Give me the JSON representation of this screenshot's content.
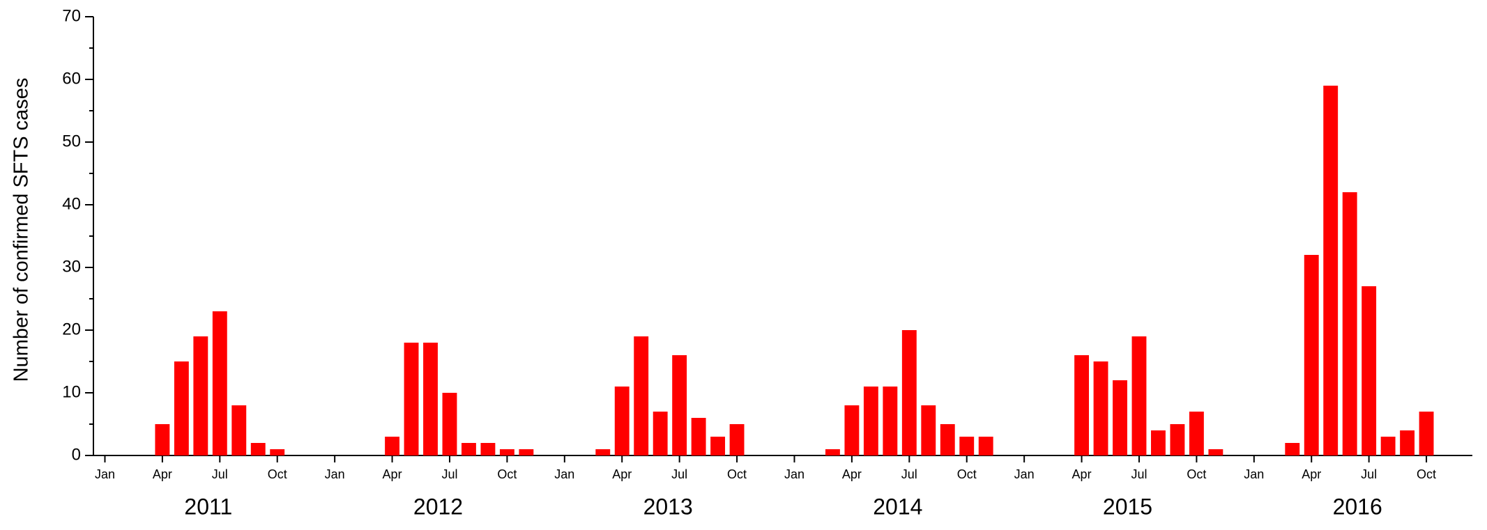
{
  "chart_data": {
    "type": "bar",
    "y_label": "Number of confirmed SFTS cases",
    "color": "#ff0000",
    "categories": [
      "Jan",
      null,
      null,
      "Apr",
      null,
      null,
      "Jul",
      null,
      null,
      "Oct",
      null,
      null,
      "Jan",
      null,
      null,
      "Apr",
      null,
      null,
      "Jul",
      null,
      null,
      "Oct",
      null,
      null,
      "Jan",
      null,
      null,
      "Apr",
      null,
      null,
      "Jul",
      null,
      null,
      "Oct",
      null,
      null,
      "Jan",
      null,
      null,
      "Apr",
      null,
      null,
      "Jul",
      null,
      null,
      "Oct",
      null,
      null,
      "Jan",
      null,
      null,
      "Apr",
      null,
      null,
      "Jul",
      null,
      null,
      "Oct",
      null,
      null,
      "Jan",
      null,
      null,
      "Apr",
      null,
      null,
      "Jul",
      null,
      null,
      "Oct",
      null,
      null
    ],
    "years": [
      2011,
      2012,
      2013,
      2014,
      2015,
      2016
    ],
    "values": [
      0,
      0,
      0,
      5,
      15,
      19,
      23,
      8,
      2,
      1,
      0,
      0,
      0,
      0,
      0,
      3,
      18,
      18,
      10,
      2,
      2,
      1,
      1,
      0,
      0,
      0,
      1,
      11,
      19,
      7,
      16,
      6,
      3,
      5,
      0,
      0,
      0,
      0,
      1,
      8,
      11,
      11,
      20,
      8,
      5,
      3,
      3,
      0,
      0,
      0,
      0,
      16,
      15,
      12,
      19,
      4,
      5,
      7,
      1,
      0,
      0,
      0,
      2,
      32,
      59,
      42,
      27,
      3,
      4,
      7,
      0,
      0
    ],
    "ylim": [
      0,
      70
    ],
    "yticks": [
      0,
      10,
      20,
      30,
      40,
      50,
      60,
      70
    ]
  }
}
